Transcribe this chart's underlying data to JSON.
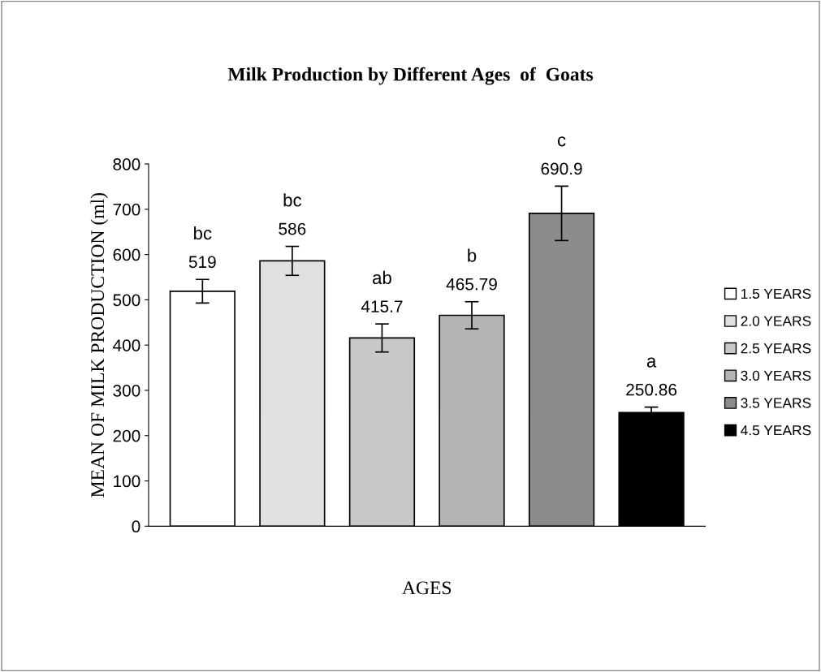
{
  "chart_data": {
    "type": "bar",
    "title": "Milk Production by Different Ages  of  Goats",
    "xlabel": "AGES",
    "ylabel": "MEAN OF MILK PRODUCTION (ml)",
    "categories": [
      null,
      null,
      null,
      null,
      null,
      null
    ],
    "series": [
      {
        "name": "1.5 YEARS",
        "color": "#ffffff",
        "values": [
          519,
          null,
          null,
          null,
          null,
          null
        ],
        "errors": [
          26,
          null,
          null,
          null,
          null,
          null
        ]
      },
      {
        "name": "2.0 YEARS",
        "color": "#e0e0e0",
        "values": [
          null,
          586,
          null,
          null,
          null,
          null
        ],
        "errors": [
          null,
          32,
          null,
          null,
          null,
          null
        ]
      },
      {
        "name": "2.5 YEARS",
        "color": "#c8c8c8",
        "values": [
          null,
          null,
          415.7,
          null,
          null,
          null
        ],
        "errors": [
          null,
          null,
          31,
          null,
          null,
          null
        ]
      },
      {
        "name": "3.0 YEARS",
        "color": "#b4b4b4",
        "values": [
          null,
          null,
          null,
          465.79,
          null,
          null
        ],
        "errors": [
          null,
          null,
          null,
          30,
          null,
          null
        ]
      },
      {
        "name": "3.5 YEARS",
        "color": "#8c8c8c",
        "values": [
          null,
          null,
          null,
          null,
          690.9,
          null
        ],
        "errors": [
          null,
          null,
          null,
          null,
          60,
          null
        ]
      },
      {
        "name": "4.5 YEARS",
        "color": "#000000",
        "values": [
          null,
          null,
          null,
          null,
          null,
          250.86
        ],
        "errors": [
          null,
          null,
          null,
          null,
          null,
          12
        ]
      }
    ],
    "annotations": [
      "bc",
      "bc",
      "ab",
      "b",
      "c",
      "a"
    ],
    "data_labels": true,
    "ylim": [
      0,
      800
    ],
    "yticks": [
      0,
      100,
      200,
      300,
      400,
      500,
      600,
      700,
      800
    ],
    "grid": false,
    "legend": "right"
  }
}
